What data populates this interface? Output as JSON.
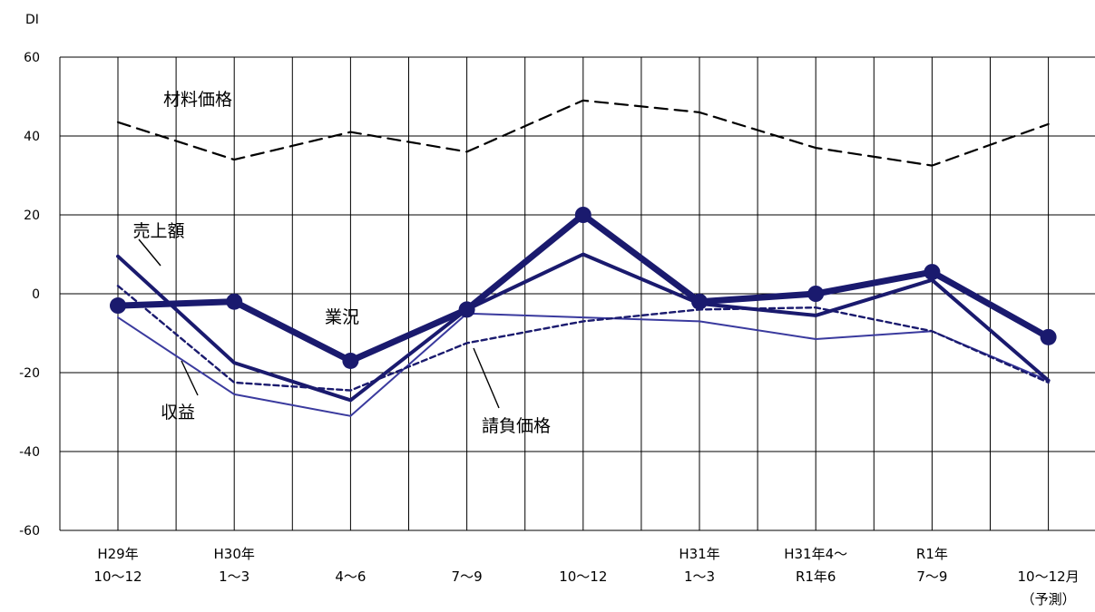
{
  "chart_data": {
    "type": "line",
    "ylabel": "DI",
    "ylim": [
      -60,
      60
    ],
    "yticks": [
      60,
      40,
      20,
      0,
      -20,
      -40,
      -60
    ],
    "categories": [
      [
        "H29年",
        "10～12"
      ],
      [
        "H30年",
        "1～3"
      ],
      [
        "",
        "4～6"
      ],
      [
        "",
        "7～9"
      ],
      [
        "",
        "10～12"
      ],
      [
        "H31年",
        "1～3"
      ],
      [
        "H31年4～",
        "R1年6"
      ],
      [
        "R1年",
        "7～9"
      ],
      [
        "",
        "10～12月",
        "（予測）"
      ]
    ],
    "grid": true,
    "series": [
      {
        "name": "業況",
        "values": [
          -3,
          -2,
          -17,
          -4,
          20,
          -2,
          0,
          5.5,
          -11
        ],
        "color": "#1a1a6e",
        "style": "thick-markers"
      },
      {
        "name": "売上額",
        "values": [
          9.5,
          -17.5,
          -27,
          -4,
          10,
          -2.5,
          -5.5,
          3.5,
          -22
        ],
        "color": "#1a1a6e",
        "style": "medium"
      },
      {
        "name": "収益",
        "values": [
          -6,
          -25.5,
          -31,
          -5,
          -6,
          -7,
          -11.5,
          -9.5,
          -22
        ],
        "color": "#3a3a9e",
        "style": "thin"
      },
      {
        "name": "請負価格",
        "values": [
          2,
          -22.5,
          -24.5,
          -12.5,
          -7,
          -4,
          -3.5,
          -9.5,
          -22.5
        ],
        "color": "#1a1a6e",
        "style": "short-dash"
      },
      {
        "name": "材料価格",
        "values": [
          43.5,
          34,
          41,
          36,
          49,
          46,
          37,
          32.5,
          43
        ],
        "color": "#000000",
        "style": "long-dash"
      }
    ],
    "annotations": [
      "材料価格",
      "売上額",
      "業況",
      "収益",
      "請負価格"
    ]
  }
}
